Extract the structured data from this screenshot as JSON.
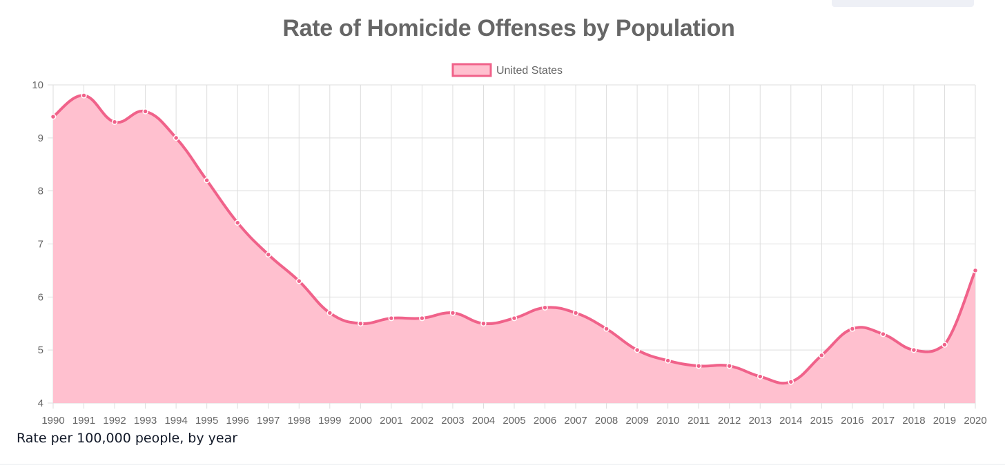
{
  "colors": {
    "line": "#f0628a",
    "fill": "#ffc0cf",
    "grid": "#dddddd",
    "text": "#666666"
  },
  "caption": "Rate per 100,000 people, by year",
  "chart_data": {
    "type": "area",
    "title": "Rate of Homicide Offenses by Population",
    "xlabel": "",
    "ylabel": "",
    "ylim": [
      4,
      10
    ],
    "yticks": [
      4,
      5,
      6,
      7,
      8,
      9,
      10
    ],
    "grid": true,
    "legend_position": "top-center",
    "categories": [
      "1990",
      "1991",
      "1992",
      "1993",
      "1994",
      "1995",
      "1996",
      "1997",
      "1998",
      "1999",
      "2000",
      "2001",
      "2002",
      "2003",
      "2004",
      "2005",
      "2006",
      "2007",
      "2008",
      "2009",
      "2010",
      "2011",
      "2012",
      "2013",
      "2014",
      "2015",
      "2016",
      "2017",
      "2018",
      "2019",
      "2020"
    ],
    "series": [
      {
        "name": "United States",
        "values": [
          9.4,
          9.8,
          9.3,
          9.5,
          9.0,
          8.2,
          7.4,
          6.8,
          6.3,
          5.7,
          5.5,
          5.6,
          5.6,
          5.7,
          5.5,
          5.6,
          5.8,
          5.7,
          5.4,
          5.0,
          4.8,
          4.7,
          4.7,
          4.5,
          4.4,
          4.9,
          5.4,
          5.3,
          5.0,
          5.1,
          6.5
        ]
      }
    ]
  }
}
